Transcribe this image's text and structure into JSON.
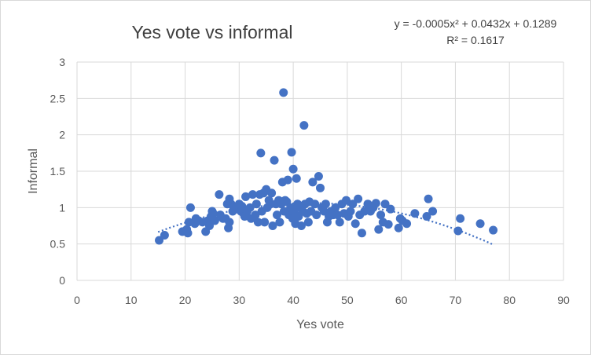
{
  "chart_data": {
    "type": "scatter",
    "title": "Yes vote vs informal",
    "xlabel": "Yes vote",
    "ylabel": "Informal",
    "xlim": [
      0,
      90
    ],
    "ylim": [
      0,
      3
    ],
    "xticks": [
      0,
      10,
      20,
      30,
      40,
      50,
      60,
      70,
      80,
      90
    ],
    "yticks": [
      0,
      0.5,
      1,
      1.5,
      2,
      2.5,
      3
    ],
    "grid": true,
    "legend": "none",
    "point_color": "#4472c4",
    "trendline": {
      "type": "polynomial",
      "order": 2,
      "coefficients": [
        -0.0005,
        0.0432,
        0.1289
      ],
      "x_range": [
        15,
        77
      ],
      "equation": "y = -0.0005x² + 0.0432x + 0.1289",
      "r_squared": "R² = 0.1617",
      "color": "#4472c4"
    },
    "points": [
      [
        15.2,
        0.55
      ],
      [
        16.2,
        0.62
      ],
      [
        19.5,
        0.67
      ],
      [
        20.3,
        0.7
      ],
      [
        20.5,
        0.65
      ],
      [
        20.7,
        0.8
      ],
      [
        21.0,
        1.0
      ],
      [
        21.8,
        0.78
      ],
      [
        22.0,
        0.85
      ],
      [
        22.5,
        0.82
      ],
      [
        23.2,
        0.8
      ],
      [
        23.8,
        0.67
      ],
      [
        24.2,
        0.82
      ],
      [
        24.5,
        0.75
      ],
      [
        24.8,
        0.88
      ],
      [
        25.0,
        0.95
      ],
      [
        25.2,
        0.92
      ],
      [
        25.5,
        0.82
      ],
      [
        26.3,
        1.18
      ],
      [
        26.5,
        0.9
      ],
      [
        27.0,
        0.85
      ],
      [
        27.5,
        0.85
      ],
      [
        27.8,
        1.05
      ],
      [
        28.0,
        0.72
      ],
      [
        28.2,
        1.12
      ],
      [
        28.2,
        0.8
      ],
      [
        28.5,
        1.05
      ],
      [
        28.8,
        0.95
      ],
      [
        29.0,
        1.0
      ],
      [
        29.5,
        0.98
      ],
      [
        30.0,
        1.05
      ],
      [
        30.3,
        0.95
      ],
      [
        30.5,
        1.02
      ],
      [
        30.8,
        0.92
      ],
      [
        31.0,
        0.88
      ],
      [
        31.2,
        1.15
      ],
      [
        31.5,
        0.95
      ],
      [
        32.0,
        1.0
      ],
      [
        32.2,
        0.85
      ],
      [
        32.5,
        1.18
      ],
      [
        33.0,
        0.9
      ],
      [
        33.2,
        1.05
      ],
      [
        33.5,
        0.8
      ],
      [
        33.8,
        1.18
      ],
      [
        34.0,
        1.75
      ],
      [
        34.2,
        0.95
      ],
      [
        34.5,
        1.2
      ],
      [
        34.7,
        0.8
      ],
      [
        35.0,
        1.25
      ],
      [
        35.2,
        1.0
      ],
      [
        35.5,
        1.1
      ],
      [
        35.8,
        1.05
      ],
      [
        36.0,
        1.2
      ],
      [
        36.2,
        0.75
      ],
      [
        36.5,
        1.65
      ],
      [
        36.8,
        1.05
      ],
      [
        37.0,
        0.9
      ],
      [
        37.3,
        1.1
      ],
      [
        37.5,
        0.8
      ],
      [
        37.8,
        1.05
      ],
      [
        38.0,
        1.35
      ],
      [
        38.2,
        2.58
      ],
      [
        38.3,
        0.95
      ],
      [
        38.5,
        1.1
      ],
      [
        38.8,
        1.08
      ],
      [
        39.0,
        1.38
      ],
      [
        39.2,
        0.9
      ],
      [
        39.5,
        1.0
      ],
      [
        39.7,
        1.76
      ],
      [
        39.9,
        0.85
      ],
      [
        40.0,
        1.53
      ],
      [
        40.2,
        0.95
      ],
      [
        40.4,
        0.78
      ],
      [
        40.6,
        1.4
      ],
      [
        40.8,
        1.05
      ],
      [
        41.0,
        0.88
      ],
      [
        41.3,
        1.0
      ],
      [
        41.5,
        0.75
      ],
      [
        41.8,
        0.95
      ],
      [
        42.0,
        2.13
      ],
      [
        42.2,
        1.05
      ],
      [
        42.5,
        0.92
      ],
      [
        42.8,
        0.8
      ],
      [
        43.0,
        1.08
      ],
      [
        43.3,
        0.95
      ],
      [
        43.6,
        1.35
      ],
      [
        44.0,
        1.05
      ],
      [
        44.3,
        0.9
      ],
      [
        44.7,
        1.43
      ],
      [
        45.0,
        1.27
      ],
      [
        45.3,
        1.0
      ],
      [
        45.7,
        0.95
      ],
      [
        46.0,
        1.05
      ],
      [
        46.3,
        0.8
      ],
      [
        46.6,
        0.88
      ],
      [
        47.0,
        0.95
      ],
      [
        47.4,
        0.9
      ],
      [
        47.8,
        1.0
      ],
      [
        48.2,
        0.9
      ],
      [
        48.6,
        0.8
      ],
      [
        49.0,
        1.05
      ],
      [
        49.4,
        0.92
      ],
      [
        49.8,
        1.1
      ],
      [
        50.2,
        0.88
      ],
      [
        50.6,
        0.95
      ],
      [
        51.0,
        1.05
      ],
      [
        51.5,
        0.78
      ],
      [
        52.0,
        1.12
      ],
      [
        52.3,
        0.9
      ],
      [
        52.7,
        0.65
      ],
      [
        53.2,
        0.95
      ],
      [
        53.8,
        1.05
      ],
      [
        54.3,
        0.95
      ],
      [
        54.8,
        1.0
      ],
      [
        55.3,
        1.06
      ],
      [
        55.8,
        0.7
      ],
      [
        56.2,
        0.9
      ],
      [
        56.6,
        0.8
      ],
      [
        57.0,
        1.05
      ],
      [
        57.6,
        0.77
      ],
      [
        58.0,
        0.98
      ],
      [
        59.5,
        0.72
      ],
      [
        59.8,
        0.85
      ],
      [
        60.2,
        0.82
      ],
      [
        61.0,
        0.78
      ],
      [
        62.5,
        0.92
      ],
      [
        64.7,
        0.88
      ],
      [
        65.0,
        1.12
      ],
      [
        65.8,
        0.95
      ],
      [
        70.5,
        0.68
      ],
      [
        70.9,
        0.85
      ],
      [
        74.6,
        0.78
      ],
      [
        77.0,
        0.69
      ]
    ]
  }
}
